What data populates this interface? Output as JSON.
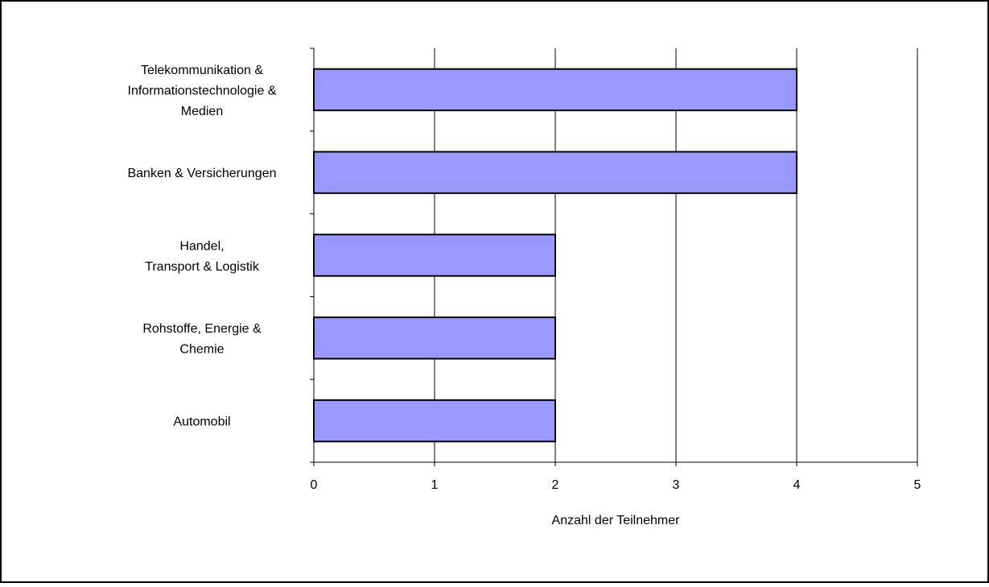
{
  "chart_data": {
    "type": "bar",
    "orientation": "horizontal",
    "title": "",
    "xlabel": "Anzahl der Teilnehmer",
    "ylabel": "",
    "categories": [
      "Telekommunikation & Informationstechnologie & Medien",
      "Banken & Versicherungen",
      "Handel, Transport & Logistik",
      "Rohstoffe, Energie & Chemie",
      "Automobil"
    ],
    "category_label_lines": [
      [
        "Telekommunikation &",
        "Informationstechnologie &",
        "Medien"
      ],
      [
        "Banken & Versicherungen"
      ],
      [
        "Handel,",
        "Transport & Logistik"
      ],
      [
        "Rohstoffe, Energie &",
        "Chemie"
      ],
      [
        "Automobil"
      ]
    ],
    "values": [
      4,
      4,
      2,
      2,
      2
    ],
    "xlim": [
      0,
      5
    ],
    "xticks": [
      "0",
      "1",
      "2",
      "3",
      "4",
      "5"
    ],
    "grid": "vertical",
    "legend": "none",
    "bar_color": "#9999ff",
    "bar_edge_color": "#000000"
  }
}
